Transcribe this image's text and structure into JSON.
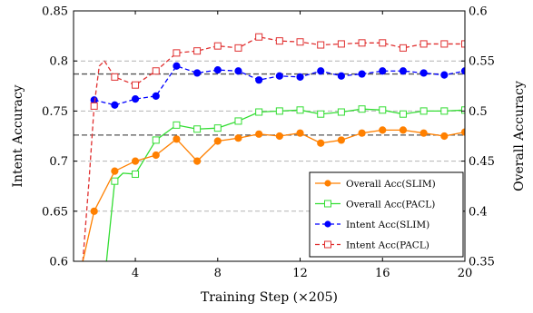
{
  "chart_data": {
    "type": "line",
    "xlabel": "Training Step (×205)",
    "ylabel_left": "Intent Accuracy",
    "ylabel_right": "Overall Accuracy",
    "xlim": [
      1,
      20
    ],
    "ylim_left": [
      0.6,
      0.85
    ],
    "ylim_right": [
      0.35,
      0.6
    ],
    "x_ticks": [
      "4",
      "8",
      "12",
      "16",
      "20"
    ],
    "y_ticks_left": [
      "0.6",
      "0.65",
      "0.7",
      "0.75",
      "0.8",
      "0.85"
    ],
    "y_ticks_right": [
      "0.35",
      "0.4",
      "0.45",
      "0.5",
      "0.55",
      "0.6"
    ],
    "grid": "horizontal dashed",
    "legend_position": "bottom-right",
    "reference_lines_left": [
      0.787,
      0.726
    ],
    "series": [
      {
        "name": "Overall Acc(SLIM)",
        "axis": "right",
        "style": "solid",
        "marker": "filled-circle",
        "color": "#ff8000",
        "x": [
          1.45,
          2,
          3,
          4,
          5,
          6,
          7,
          8,
          9,
          10,
          11,
          12,
          13,
          14,
          15,
          16,
          17,
          18,
          19,
          20
        ],
        "values": [
          0.35,
          0.4,
          0.44,
          0.45,
          0.456,
          0.472,
          0.45,
          0.47,
          0.473,
          0.477,
          0.475,
          0.478,
          0.468,
          0.471,
          0.478,
          0.481,
          0.481,
          0.478,
          0.475,
          0.479
        ]
      },
      {
        "name": "Overall Acc(PACL)",
        "axis": "right",
        "style": "solid",
        "marker": "open-square",
        "color": "#33dd33",
        "x": [
          2.6,
          3,
          3.4,
          4,
          5,
          6,
          7,
          8,
          9,
          10,
          11,
          12,
          13,
          14,
          15,
          16,
          17,
          18,
          19,
          20
        ],
        "values": [
          0.35,
          0.43,
          0.438,
          0.437,
          0.471,
          0.486,
          0.482,
          0.483,
          0.49,
          0.499,
          0.5,
          0.501,
          0.497,
          0.499,
          0.502,
          0.501,
          0.497,
          0.5,
          0.5,
          0.501
        ]
      },
      {
        "name": "Intent Acc(SLIM)",
        "axis": "left",
        "style": "dashed",
        "marker": "filled-circle",
        "color": "#0000ff",
        "x": [
          2,
          3,
          4,
          5,
          6,
          7,
          8,
          9,
          10,
          11,
          12,
          13,
          14,
          15,
          16,
          17,
          18,
          19,
          20
        ],
        "values": [
          0.761,
          0.756,
          0.762,
          0.765,
          0.795,
          0.788,
          0.791,
          0.79,
          0.781,
          0.785,
          0.784,
          0.79,
          0.785,
          0.787,
          0.79,
          0.79,
          0.788,
          0.786,
          0.79
        ]
      },
      {
        "name": "Intent Acc(PACL)",
        "axis": "left",
        "style": "dashed",
        "marker": "open-square",
        "color": "#e03030",
        "x": [
          1.45,
          1.75,
          2,
          2.25,
          2.5,
          3,
          4,
          5,
          6,
          7,
          8,
          9,
          10,
          11,
          12,
          13,
          14,
          15,
          16,
          17,
          18,
          19,
          20
        ],
        "values": [
          0.6,
          0.68,
          0.755,
          0.795,
          0.8,
          0.784,
          0.776,
          0.79,
          0.808,
          0.81,
          0.815,
          0.813,
          0.824,
          0.82,
          0.819,
          0.816,
          0.817,
          0.818,
          0.818,
          0.813,
          0.817,
          0.817,
          0.817
        ]
      }
    ]
  }
}
